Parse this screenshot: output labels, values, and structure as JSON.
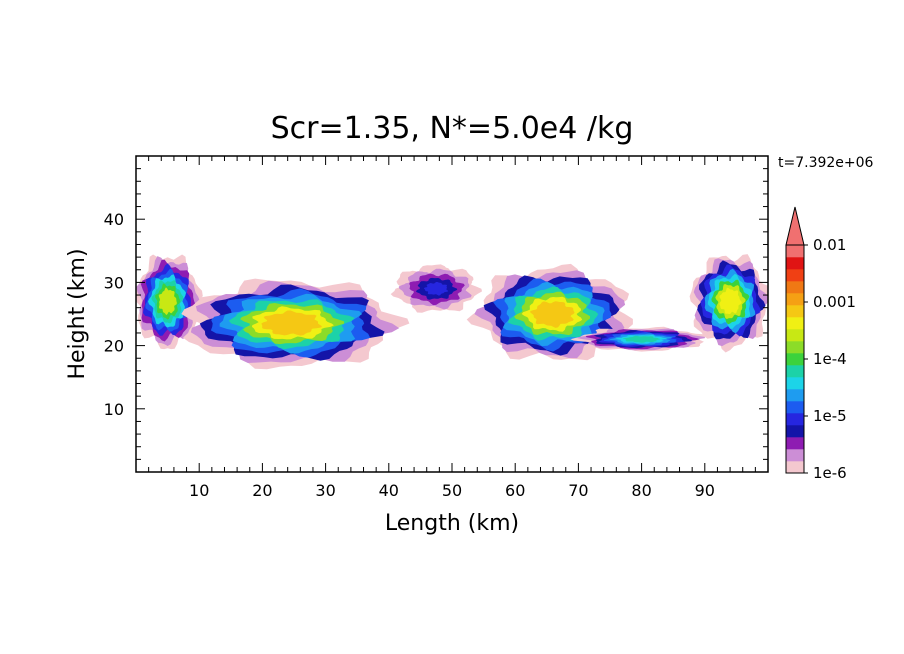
{
  "chart_data": {
    "type": "heatmap",
    "title": "Scr=1.35, N*=5.0e4 /kg",
    "xlabel": "Length  (km)",
    "ylabel": "Height  (km)",
    "time_stamp": "t=7.392e+06",
    "xlim": [
      0,
      100
    ],
    "ylim": [
      0,
      50
    ],
    "x_ticks": [
      10,
      20,
      30,
      40,
      50,
      60,
      70,
      80,
      90
    ],
    "y_ticks": [
      10,
      20,
      30,
      40
    ],
    "log_scale": true,
    "grid": false,
    "colorbar": {
      "position": "right",
      "labels": [
        "0.01",
        "0.001",
        "1e-4",
        "1e-5",
        "1e-6"
      ],
      "label_values": [
        0.01,
        0.001,
        0.0001,
        1e-05,
        1e-06
      ],
      "colors": [
        "#f4c8cf",
        "#cc8ed6",
        "#8e1cb2",
        "#1414a8",
        "#2626e0",
        "#1c5cf0",
        "#1e9cf0",
        "#1cd4e8",
        "#1cd2a8",
        "#3cd23c",
        "#8cdc28",
        "#c8e814",
        "#f0f014",
        "#f5c814",
        "#f5a014",
        "#f07814",
        "#f04014",
        "#e01414",
        "#f07070"
      ],
      "extend_max": true
    },
    "regions": [
      {
        "name": "left-edge",
        "x": [
          0,
          10
        ],
        "y": [
          19,
          35
        ],
        "max": 0.0005
      },
      {
        "name": "cloud-west",
        "x": [
          8,
          41
        ],
        "y": [
          16,
          31
        ],
        "max": 0.002
      },
      {
        "name": "cloud-center-small",
        "x": [
          41,
          54
        ],
        "y": [
          25,
          33
        ],
        "max": 1e-05
      },
      {
        "name": "cloud-east",
        "x": [
          54,
          78
        ],
        "y": [
          17,
          33
        ],
        "max": 0.002
      },
      {
        "name": "tail-east",
        "x": [
          70,
          90
        ],
        "y": [
          19,
          23
        ],
        "max": 0.0001
      },
      {
        "name": "right-edge",
        "x": [
          88,
          100
        ],
        "y": [
          19,
          35
        ],
        "max": 0.001
      }
    ]
  }
}
